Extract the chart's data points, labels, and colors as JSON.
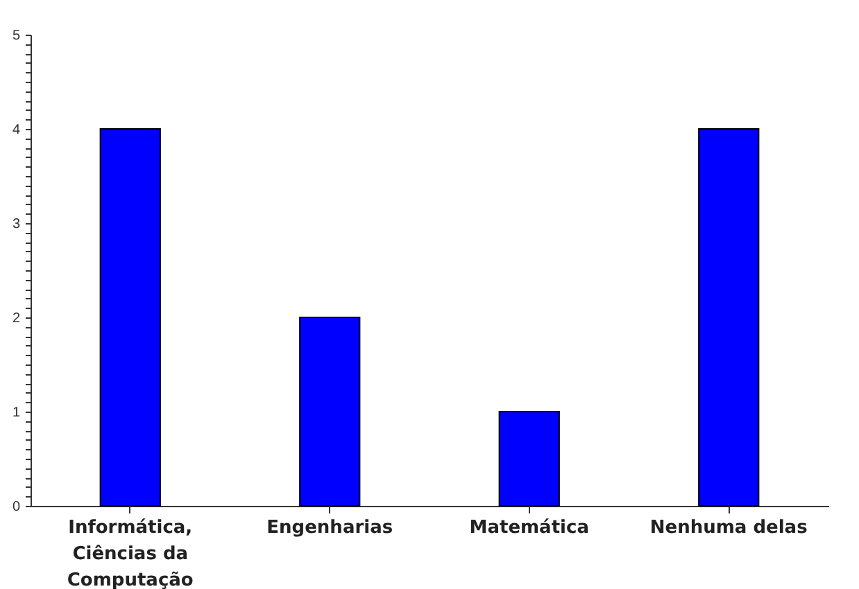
{
  "chart_data": {
    "type": "bar",
    "categories": [
      "Informática, Ciências da Computação",
      "Engenharias",
      "Matemática",
      "Nenhuma delas"
    ],
    "values": [
      4,
      2,
      1,
      4
    ],
    "color": "#0000ff",
    "ylim": [
      0,
      5
    ],
    "yticks": [
      0,
      {
        "value": 0.1,
        "label": null
      },
      {
        "value": 0.2,
        "label": null
      },
      {
        "value": 0.3,
        "label": null
      },
      {
        "value": 0.4,
        "label": null
      },
      {
        "value": 0.5,
        "label": null
      },
      {
        "value": 0.6,
        "label": null
      },
      {
        "value": 0.7,
        "label": null
      },
      {
        "value": 0.8,
        "label": null
      },
      {
        "value": 0.9,
        "label": null
      },
      1,
      {
        "value": 1.1,
        "label": null
      },
      {
        "value": 1.2,
        "label": null
      },
      {
        "value": 1.3,
        "label": null
      },
      {
        "value": 1.4,
        "label": null
      },
      {
        "value": 1.5,
        "label": null
      },
      {
        "value": 1.6,
        "label": null
      },
      {
        "value": 1.7,
        "label": null
      },
      {
        "value": 1.8,
        "label": null
      },
      {
        "value": 1.9,
        "label": null
      },
      2,
      {
        "value": 2.1,
        "label": null
      },
      {
        "value": 2.2,
        "label": null
      },
      {
        "value": 2.3,
        "label": null
      },
      {
        "value": 2.4,
        "label": null
      },
      {
        "value": 2.5,
        "label": null
      },
      {
        "value": 2.6,
        "label": null
      },
      {
        "value": 2.7,
        "label": null
      },
      {
        "value": 2.8,
        "label": null
      },
      {
        "value": 2.9,
        "label": null
      },
      3,
      {
        "value": 3.1,
        "label": null
      },
      {
        "value": 3.2,
        "label": null
      },
      {
        "value": 3.3,
        "label": null
      },
      {
        "value": 3.4,
        "label": null
      },
      {
        "value": 3.5,
        "label": null
      },
      {
        "value": 3.6,
        "label": null
      },
      {
        "value": 3.7,
        "label": null
      },
      {
        "value": 3.8,
        "label": null
      },
      {
        "value": 3.9,
        "label": null
      },
      4,
      {
        "value": 4.1,
        "label": null
      },
      {
        "value": 4.2,
        "label": null
      },
      {
        "value": 4.3,
        "label": null
      },
      {
        "value": 4.4,
        "label": null
      },
      {
        "value": 4.5,
        "label": null
      },
      {
        "value": 4.6,
        "label": null
      },
      {
        "value": 4.7,
        "label": null
      },
      {
        "value": 4.8,
        "label": null
      },
      {
        "value": 4.9,
        "label": null
      },
      5
    ],
    "grid": false
  }
}
